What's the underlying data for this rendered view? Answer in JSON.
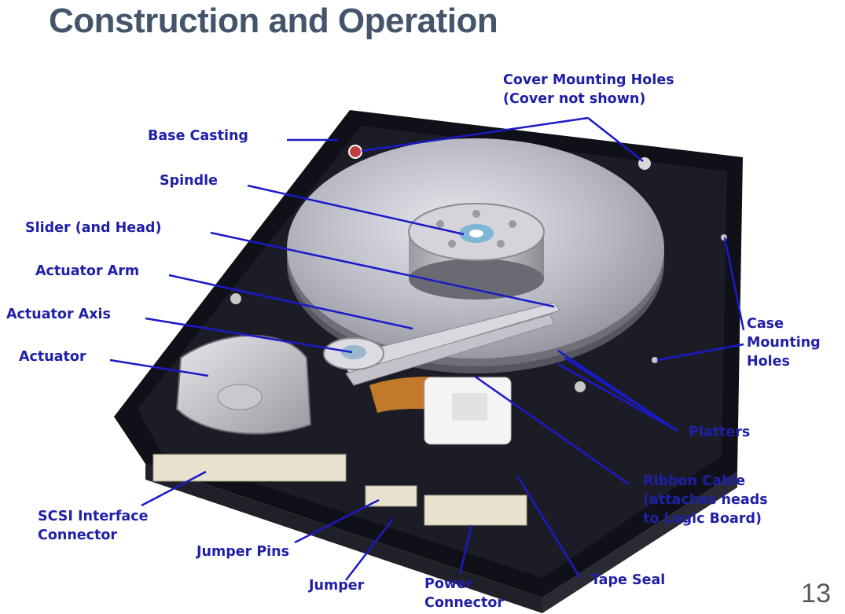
{
  "slide": {
    "title": "Construction and Operation",
    "page_number": "13"
  },
  "labels": {
    "cover_mounting_holes_1": "Cover Mounting Holes",
    "cover_mounting_holes_2": "(Cover not shown)",
    "base_casting": "Base Casting",
    "spindle": "Spindle",
    "slider": "Slider (and Head)",
    "actuator_arm": "Actuator Arm",
    "actuator_axis": "Actuator Axis",
    "actuator": "Actuator",
    "case_mounting_holes_1": "Case",
    "case_mounting_holes_2": "Mounting",
    "case_mounting_holes_3": "Holes",
    "platters": "Platters",
    "ribbon_cable_1": "Ribbon Cable",
    "ribbon_cable_2": "(attaches heads",
    "ribbon_cable_3": "to Logic Board)",
    "scsi_1": "SCSI Interface",
    "scsi_2": "Connector",
    "jumper_pins": "Jumper Pins",
    "jumper": "Jumper",
    "power_1": "Power",
    "power_2": "Connector",
    "tape_seal": "Tape Seal"
  },
  "colors": {
    "title": "#44546a",
    "label": "#1f1fa8",
    "leader_line": "#1a1ac8"
  }
}
